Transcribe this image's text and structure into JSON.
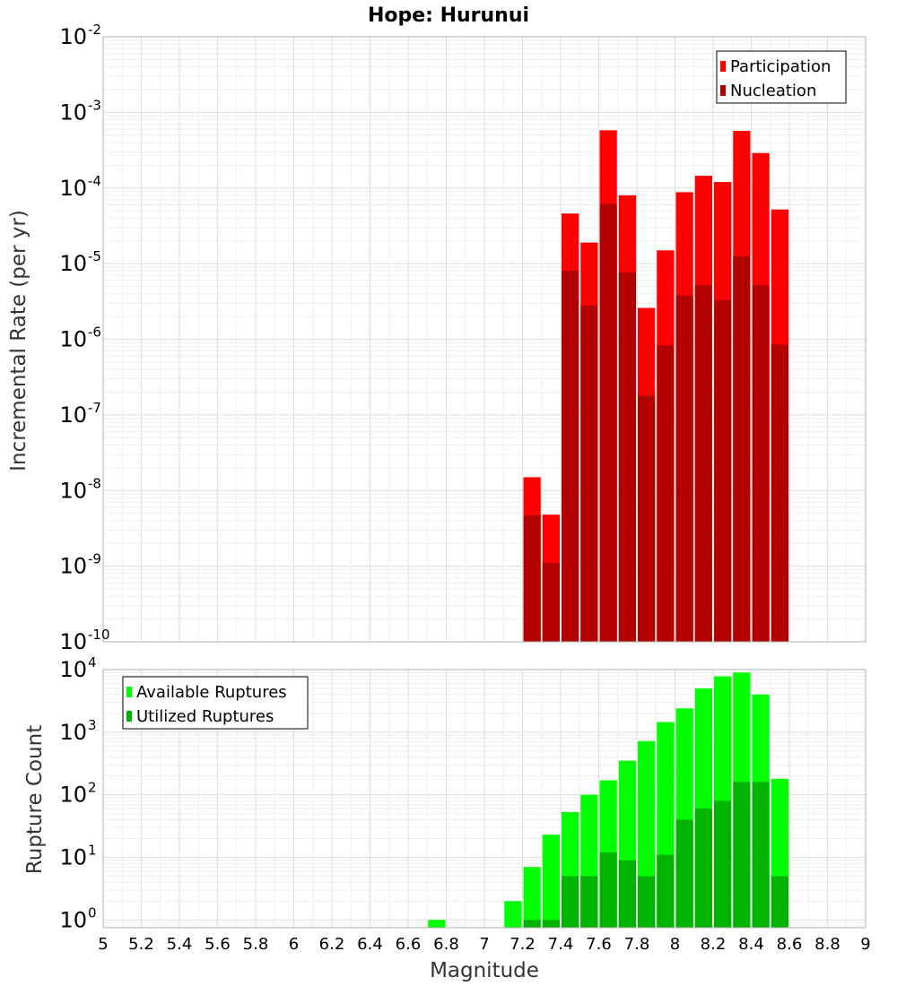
{
  "chart_data": [
    {
      "type": "bar",
      "title": "Hope: Hurunui",
      "xlabel": "Magnitude",
      "ylabel": "Incremental Rate (per yr)",
      "yscale": "log",
      "ylim": [
        1e-10,
        0.01
      ],
      "xlim": [
        5,
        9
      ],
      "bar_width": 0.1,
      "grid": true,
      "legend_position": "top-right",
      "x": [
        7.25,
        7.35,
        7.45,
        7.55,
        7.65,
        7.75,
        7.85,
        7.95,
        8.05,
        8.15,
        8.25,
        8.35,
        8.45,
        8.55
      ],
      "series": [
        {
          "name": "Participation",
          "color": "#ff0000",
          "values": [
            1.5e-08,
            4.8e-09,
            4.6e-05,
            1.9e-05,
            0.00058,
            8e-05,
            2.6e-06,
            1.5e-05,
            8.8e-05,
            0.000145,
            0.00012,
            0.00057,
            0.00029,
            5.2e-05
          ]
        },
        {
          "name": "Nucleation",
          "color": "#b30000",
          "values": [
            4.7e-09,
            1.1e-09,
            8.1e-06,
            2.8e-06,
            6.2e-05,
            7.7e-06,
            1.8e-07,
            8.3e-07,
            3.8e-06,
            5.2e-06,
            3.3e-06,
            1.25e-05,
            5.2e-06,
            8.5e-07
          ]
        }
      ]
    },
    {
      "type": "bar",
      "title": "",
      "xlabel": "Magnitude",
      "ylabel": "Rupture Count",
      "yscale": "log",
      "ylim": [
        0.75,
        10000
      ],
      "xlim": [
        5,
        9
      ],
      "bar_width": 0.1,
      "grid": true,
      "legend_position": "top-left",
      "x": [
        6.75,
        7.15,
        7.25,
        7.35,
        7.45,
        7.55,
        7.65,
        7.75,
        7.85,
        7.95,
        8.05,
        8.15,
        8.25,
        8.35,
        8.45,
        8.55
      ],
      "series": [
        {
          "name": "Available Ruptures",
          "color": "#00ff00",
          "values": [
            1,
            2,
            7,
            23,
            53,
            100,
            170,
            350,
            720,
            1450,
            2400,
            5000,
            7800,
            9000,
            4000,
            180
          ]
        },
        {
          "name": "Utilized Ruptures",
          "color": "#00b300",
          "values": [
            0,
            0,
            1,
            1,
            5,
            5,
            12,
            9,
            5,
            11,
            40,
            60,
            80,
            160,
            160,
            5
          ]
        }
      ]
    }
  ],
  "x_ticks": [
    "5",
    "5.2",
    "5.4",
    "5.6",
    "5.8",
    "6",
    "6.2",
    "6.4",
    "6.6",
    "6.8",
    "7",
    "7.2",
    "7.4",
    "7.6",
    "7.8",
    "8",
    "8.2",
    "8.4",
    "8.6",
    "8.8",
    "9"
  ],
  "top_y_ticks": [
    {
      "base": "10",
      "exp": "-10"
    },
    {
      "base": "10",
      "exp": "-9"
    },
    {
      "base": "10",
      "exp": "-8"
    },
    {
      "base": "10",
      "exp": "-7"
    },
    {
      "base": "10",
      "exp": "-6"
    },
    {
      "base": "10",
      "exp": "-5"
    },
    {
      "base": "10",
      "exp": "-4"
    },
    {
      "base": "10",
      "exp": "-3"
    },
    {
      "base": "10",
      "exp": "-2"
    }
  ],
  "bottom_y_ticks": [
    {
      "base": "10",
      "exp": "0"
    },
    {
      "base": "10",
      "exp": "1"
    },
    {
      "base": "10",
      "exp": "2"
    },
    {
      "base": "10",
      "exp": "3"
    },
    {
      "base": "10",
      "exp": "4"
    }
  ]
}
